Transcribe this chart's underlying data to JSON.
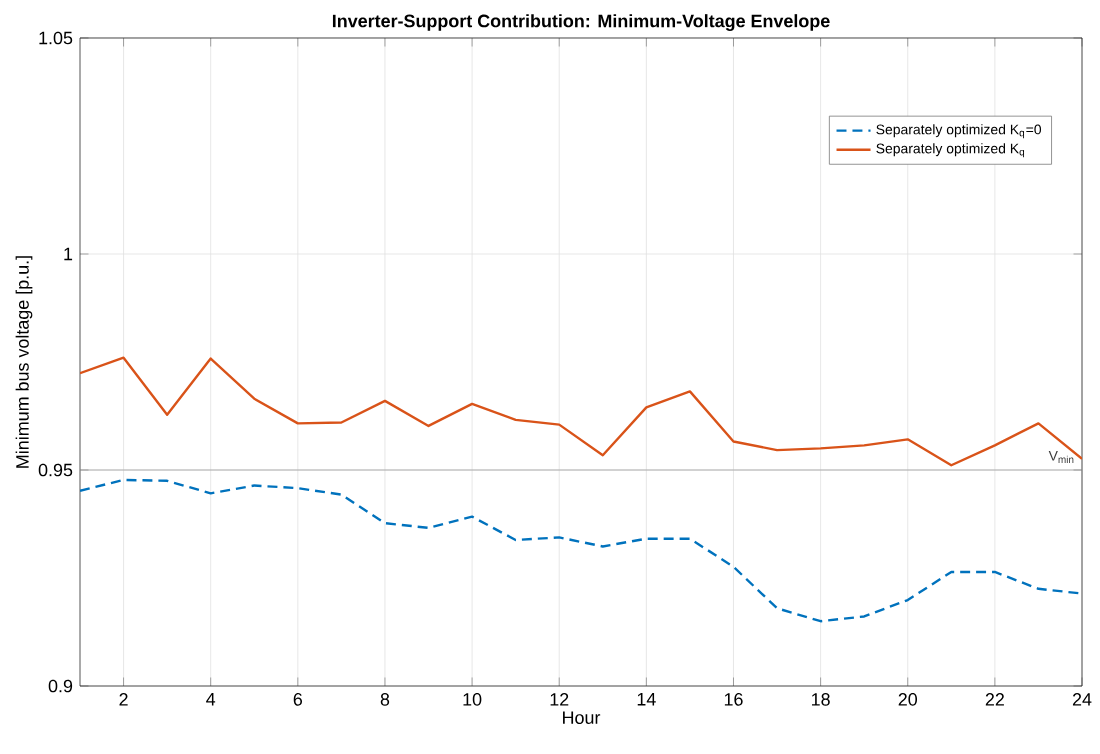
{
  "chart_data": {
    "type": "line",
    "title": "**Inverter-Support Contribution: Minimum-Voltage Envelope**",
    "xlabel": "Hour",
    "ylabel": "Minimum bus voltage [p.u.]",
    "x": [
      1,
      2,
      3,
      4,
      5,
      6,
      7,
      8,
      9,
      10,
      11,
      12,
      13,
      14,
      15,
      16,
      17,
      18,
      19,
      20,
      21,
      22,
      23,
      24
    ],
    "series": [
      {
        "name": "Separately optimized K$_{q}$=0",
        "color": "#0072bd",
        "line_style": "dashed",
        "values": [
          0.9452,
          0.9477,
          0.9475,
          0.9446,
          0.9464,
          0.9458,
          0.9443,
          0.9377,
          0.9366,
          0.9392,
          0.9338,
          0.9344,
          0.9323,
          0.9341,
          0.9341,
          0.9276,
          0.918,
          0.915,
          0.9161,
          0.9199,
          0.9264,
          0.9264,
          0.9225,
          0.9214
        ]
      },
      {
        "name": "Separately optimized K$_{q}$",
        "color": "#d95319",
        "line_style": "solid",
        "values": [
          0.9724,
          0.976,
          0.9628,
          0.9758,
          0.9665,
          0.9608,
          0.961,
          0.966,
          0.9602,
          0.9653,
          0.9616,
          0.9605,
          0.9534,
          0.9645,
          0.9682,
          0.9566,
          0.9546,
          0.955,
          0.9557,
          0.9571,
          0.9511,
          0.9557,
          0.9608,
          0.9526
        ]
      }
    ],
    "xlim": [
      1,
      24
    ],
    "ylim": [
      0.9,
      1.05
    ],
    "xticks": [
      2,
      4,
      6,
      8,
      10,
      12,
      14,
      16,
      18,
      20,
      22,
      24
    ],
    "yticks": [
      0.9,
      {
        "value": 0.95,
        "label": "0.95"
      },
      1,
      1.05
    ],
    "ref_lines": [
      {
        "axis": "y",
        "value": 0.95,
        "label": "V$_{min}$",
        "color": "#a0a0a0"
      }
    ],
    "grid": true,
    "legend": "top right",
    "marker": "none"
  }
}
